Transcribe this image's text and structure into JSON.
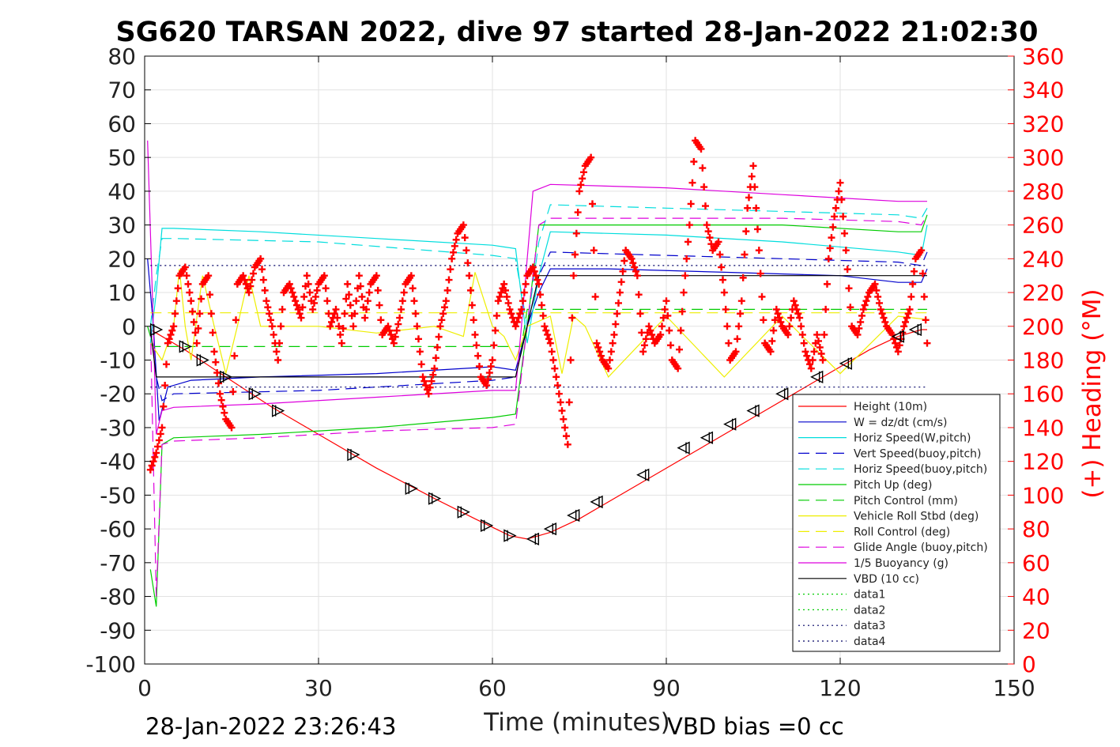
{
  "chart_data": {
    "type": "line",
    "title": "SG620 TARSAN 2022, dive 97 started 28-Jan-2022 21:02:30",
    "xlabel": "Time (minutes)",
    "ylabel": "",
    "ylabel_right": "(+) Heading (°M)",
    "footer_left": "28-Jan-2022 23:26:43",
    "footer_right": "VBD bias =0 cc",
    "xlim": [
      0,
      150
    ],
    "ylim": [
      -100,
      80
    ],
    "ylim_right": [
      0,
      360
    ],
    "x_ticks": [
      "0",
      "30",
      "60",
      "90",
      "120",
      "150"
    ],
    "y_ticks": [
      "80",
      "70",
      "60",
      "50",
      "40",
      "30",
      "20",
      "10",
      "0",
      "-10",
      "-20",
      "-30",
      "-40",
      "-50",
      "-60",
      "-70",
      "-80",
      "-90",
      "-100"
    ],
    "y_ticks_right": [
      "360",
      "340",
      "320",
      "300",
      "280",
      "260",
      "240",
      "220",
      "200",
      "180",
      "160",
      "140",
      "120",
      "100",
      "80",
      "60",
      "40",
      "20",
      "0"
    ],
    "grid": true,
    "legend_position": "bottom-right",
    "colors": {
      "red": "#ff0000",
      "blue": "#0000cc",
      "cyan": "#00dddd",
      "green": "#00cc00",
      "yellow": "#eeee00",
      "magenta": "#dd00dd",
      "black": "#000000"
    },
    "series": [
      {
        "name": "Height (10m)",
        "color": "#ff0000",
        "style": "solid",
        "x": [
          1,
          2,
          7,
          14,
          22,
          30,
          40,
          50,
          57,
          63,
          66,
          70,
          75,
          85,
          95,
          105,
          115,
          125,
          130,
          134,
          135
        ],
        "y": [
          -1,
          -2,
          -7,
          -15,
          -24,
          -32,
          -42,
          -51,
          -57,
          -62,
          -63,
          -61,
          -57,
          -47,
          -37,
          -27,
          -17,
          -7,
          -3,
          -1,
          -1
        ]
      },
      {
        "name": "W = dz/dt (cm/s)",
        "color": "#0000cc",
        "style": "solid",
        "x": [
          0.5,
          1.5,
          2.5,
          4,
          8,
          20,
          40,
          60,
          64,
          66,
          68,
          70,
          80,
          100,
          120,
          130,
          134,
          135
        ],
        "y": [
          20,
          0,
          -28,
          -18,
          -16,
          -15,
          -14,
          -12,
          -13,
          0,
          10,
          17,
          17,
          16,
          15,
          13,
          13,
          17
        ]
      },
      {
        "name": "Horiz Speed(W,pitch)",
        "color": "#00dddd",
        "style": "solid",
        "x": [
          1,
          2,
          3,
          5,
          20,
          40,
          60,
          64,
          66,
          68,
          70,
          90,
          110,
          130,
          134,
          135
        ],
        "y": [
          -5,
          10,
          29,
          29,
          28,
          26,
          24,
          23,
          -5,
          15,
          28,
          27,
          25,
          22,
          21,
          30
        ]
      },
      {
        "name": "Vert Speed(buoy,pitch)",
        "color": "#0000cc",
        "style": "dashed",
        "x": [
          1,
          2,
          3,
          5,
          30,
          60,
          64,
          66,
          68,
          70,
          90,
          110,
          130,
          134,
          135
        ],
        "y": [
          0,
          -15,
          -22,
          -20,
          -19,
          -16,
          -15,
          0,
          15,
          22,
          21,
          20,
          19,
          18,
          22
        ]
      },
      {
        "name": "Horiz Speed(buoy,pitch)",
        "color": "#00dddd",
        "style": "dashed",
        "x": [
          1,
          2,
          3,
          5,
          30,
          60,
          64,
          66,
          68,
          70,
          90,
          110,
          130,
          134,
          135
        ],
        "y": [
          0,
          15,
          26,
          26,
          25,
          21,
          20,
          0,
          25,
          36,
          35,
          34,
          33,
          32,
          35
        ]
      },
      {
        "name": "Pitch Up (deg)",
        "color": "#00cc00",
        "style": "solid",
        "x": [
          1,
          2,
          3,
          5,
          20,
          40,
          60,
          64,
          66,
          68,
          70,
          90,
          110,
          130,
          134,
          135
        ],
        "y": [
          -72,
          -83,
          -35,
          -33,
          -32,
          -30,
          -27,
          -26,
          0,
          30,
          30,
          30,
          30,
          28,
          28,
          33
        ]
      },
      {
        "name": "Pitch Control (mm)",
        "color": "#00cc00",
        "style": "dashed",
        "x": [
          0.5,
          1.5,
          2.5,
          65,
          66,
          67,
          135
        ],
        "y": [
          0,
          -6,
          -6,
          -6,
          5,
          5,
          5
        ]
      },
      {
        "name": "Vehicle Roll Stbd (deg)",
        "color": "#eeee00",
        "style": "solid",
        "x": [
          1,
          3,
          5,
          6,
          7,
          8,
          10,
          12,
          14,
          16,
          18,
          20,
          30,
          40,
          50,
          55,
          57,
          60,
          62,
          64,
          66,
          70,
          72,
          74,
          76,
          80,
          90,
          100,
          110,
          120,
          130,
          135
        ],
        "y": [
          -5,
          -10,
          0,
          17,
          0,
          -10,
          15,
          0,
          -14,
          0,
          15,
          0,
          0,
          -2,
          0,
          -3,
          16,
          0,
          -3,
          -10,
          0,
          3,
          -14,
          3,
          0,
          -15,
          3,
          -15,
          3,
          -14,
          3,
          2
        ]
      },
      {
        "name": "Roll Control (deg)",
        "color": "#eeee00",
        "style": "dashed",
        "x": [
          1,
          65,
          66,
          135
        ],
        "y": [
          4,
          4,
          4,
          4
        ]
      },
      {
        "name": "Glide Angle (buoy,pitch)",
        "color": "#dd00dd",
        "style": "dashed",
        "x": [
          1,
          2,
          3,
          5,
          20,
          40,
          60,
          64,
          66,
          68,
          70,
          90,
          110,
          130,
          134,
          135
        ],
        "y": [
          0,
          -80,
          -35,
          -34,
          -33,
          -31,
          -30,
          -29,
          0,
          30,
          32,
          32,
          32,
          31,
          30,
          33
        ]
      },
      {
        "name": "1/5 Buoyancy (g)",
        "color": "#dd00dd",
        "style": "solid",
        "x": [
          0.5,
          1.5,
          2,
          3,
          5,
          20,
          40,
          60,
          64,
          65,
          67,
          70,
          90,
          110,
          130,
          135
        ],
        "y": [
          55,
          0,
          -32,
          -25,
          -24,
          -23,
          -21,
          -19,
          -19,
          0,
          40,
          42,
          41,
          39,
          37,
          37
        ]
      },
      {
        "name": "VBD (10 cc)",
        "color": "#000000",
        "style": "solid",
        "x": [
          1,
          2,
          64,
          66,
          68,
          135
        ],
        "y": [
          -1,
          -15,
          -15,
          0,
          15,
          15
        ]
      },
      {
        "name": "data1",
        "color": "#00cc00",
        "style": "dotted",
        "x": [],
        "y": []
      },
      {
        "name": "data2",
        "color": "#00cc00",
        "style": "dotted",
        "x": [],
        "y": []
      },
      {
        "name": "data3",
        "color": "#000066",
        "style": "dotted",
        "x": [
          1,
          135
        ],
        "y": [
          18,
          18
        ]
      },
      {
        "name": "data4",
        "color": "#000066",
        "style": "dotted",
        "x": [
          1,
          135
        ],
        "y": [
          -18,
          -18
        ]
      }
    ],
    "heading_series": {
      "name": "(+) Heading (°M)",
      "color": "#ff0000",
      "marker": "+",
      "x": [
        1,
        2,
        3,
        4,
        5,
        6,
        7,
        8,
        9,
        10,
        11,
        12,
        13,
        14,
        15,
        16,
        17,
        18,
        19,
        20,
        21,
        22,
        23,
        24,
        25,
        26,
        27,
        28,
        29,
        30,
        31,
        32,
        33,
        34,
        35,
        36,
        37,
        38,
        39,
        40,
        41,
        42,
        43,
        44,
        45,
        46,
        47,
        48,
        49,
        50,
        51,
        52,
        53,
        54,
        55,
        56,
        57,
        58,
        59,
        60,
        61,
        62,
        63,
        64,
        65,
        66,
        67,
        68,
        69,
        70,
        71,
        72,
        73,
        74,
        75,
        76,
        77,
        78,
        79,
        80,
        81,
        82,
        83,
        84,
        85,
        86,
        87,
        88,
        89,
        90,
        91,
        92,
        93,
        94,
        95,
        96,
        97,
        98,
        99,
        100,
        101,
        102,
        103,
        104,
        105,
        106,
        107,
        108,
        109,
        110,
        111,
        112,
        113,
        114,
        115,
        116,
        117,
        118,
        119,
        120,
        121,
        122,
        123,
        124,
        125,
        126,
        127,
        128,
        129,
        130,
        131,
        132,
        133,
        134,
        135
      ],
      "y": [
        115,
        125,
        140,
        190,
        200,
        230,
        235,
        215,
        190,
        225,
        230,
        185,
        160,
        145,
        140,
        225,
        230,
        220,
        235,
        240,
        215,
        200,
        180,
        220,
        225,
        215,
        205,
        230,
        210,
        225,
        230,
        200,
        210,
        190,
        225,
        200,
        230,
        205,
        225,
        230,
        195,
        200,
        190,
        205,
        225,
        230,
        200,
        170,
        160,
        175,
        200,
        215,
        240,
        255,
        260,
        230,
        195,
        170,
        165,
        180,
        215,
        225,
        210,
        200,
        210,
        230,
        235,
        225,
        200,
        190,
        170,
        150,
        130,
        230,
        280,
        295,
        300,
        190,
        180,
        175,
        195,
        220,
        245,
        240,
        230,
        185,
        200,
        190,
        195,
        215,
        180,
        175,
        220,
        260,
        310,
        305,
        260,
        245,
        250,
        220,
        180,
        185,
        215,
        270,
        295,
        245,
        190,
        185,
        210,
        200,
        195,
        215,
        205,
        185,
        175,
        195,
        180,
        240,
        265,
        285,
        245,
        200,
        195,
        210,
        220,
        225,
        210,
        200,
        195,
        185,
        200,
        210,
        240,
        245,
        190
      ]
    },
    "triangle_markers": {
      "x": [
        2,
        7,
        10,
        14,
        19,
        23,
        36,
        46,
        50,
        55,
        59,
        63,
        67,
        70,
        74,
        78,
        86,
        93,
        97,
        101,
        105,
        110,
        116,
        121,
        130,
        133
      ],
      "y": [
        -1,
        -6,
        -10,
        -15,
        -20,
        -25,
        -38,
        -48,
        -51,
        -55,
        -59,
        -62,
        -63,
        -60,
        -56,
        -52,
        -44,
        -36,
        -33,
        -29,
        -25,
        -20,
        -15,
        -11,
        -3,
        -1
      ]
    }
  }
}
